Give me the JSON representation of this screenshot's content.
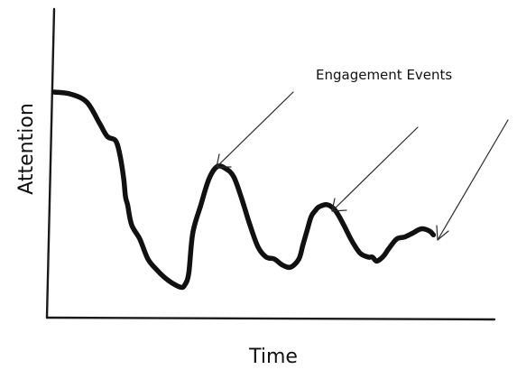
{
  "chart_data": {
    "type": "line",
    "xlabel": "Time",
    "ylabel": "Attention",
    "xlim": [
      0,
      100
    ],
    "ylim": [
      0,
      100
    ],
    "grid": false,
    "series": [
      {
        "x": [
          0,
          4,
          8,
          11,
          13,
          15,
          16,
          17,
          17.5,
          18,
          19,
          21,
          23,
          25,
          27,
          29,
          31,
          32,
          33,
          34,
          36,
          38,
          40,
          42,
          44,
          46,
          48,
          50,
          52,
          54,
          56,
          58,
          60,
          61,
          62,
          63,
          64,
          65,
          67,
          69,
          71,
          73,
          75,
          77,
          78,
          79,
          80,
          81,
          82,
          84,
          86,
          88,
          90,
          92,
          93
        ],
        "y": [
          100,
          99,
          95,
          85,
          78,
          76,
          70,
          58,
          48,
          44,
          34,
          27,
          17,
          12,
          8,
          5,
          3,
          4,
          10,
          30,
          44,
          57,
          63,
          62,
          58,
          47,
          34,
          23,
          18,
          17,
          14,
          13,
          17,
          24,
          31,
          38,
          41,
          43,
          44,
          41,
          34,
          26,
          20,
          18,
          18,
          16,
          17,
          19,
          22,
          27,
          28,
          30,
          32,
          31,
          29
        ]
      }
    ],
    "annotations": [
      {
        "text": "Engagement Events"
      }
    ]
  }
}
